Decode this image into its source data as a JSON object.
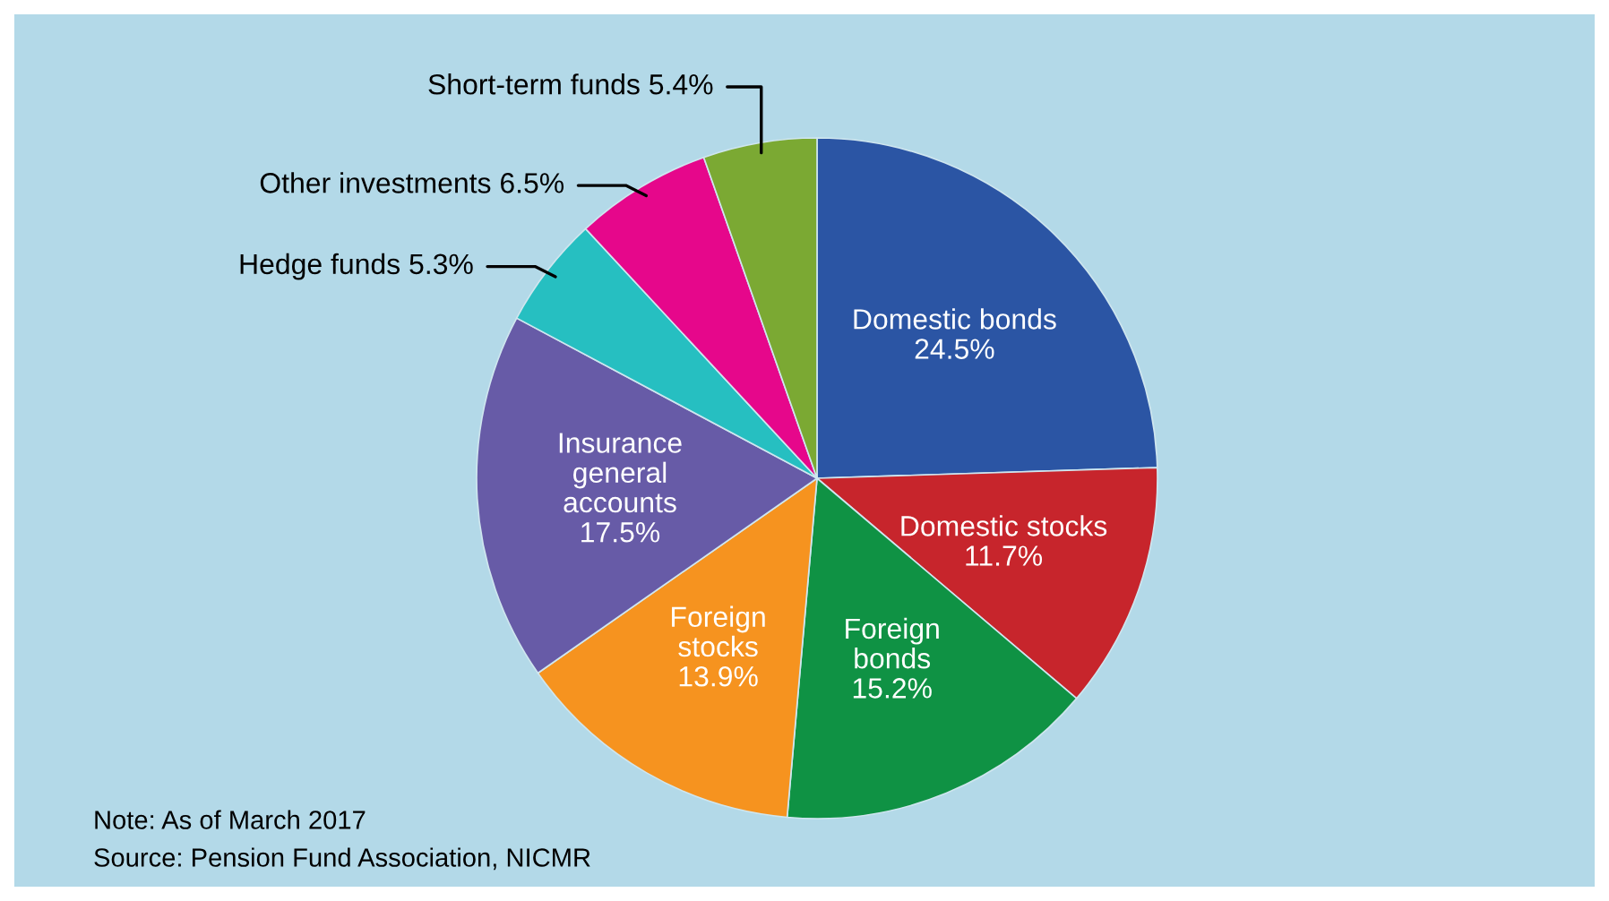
{
  "chart_data": {
    "type": "pie",
    "categories": [
      "Domestic bonds",
      "Domestic stocks",
      "Foreign\nbonds",
      "Foreign\nstocks",
      "Insurance\ngeneral\naccounts",
      "Hedge funds",
      "Other investments",
      "Short-term funds"
    ],
    "values": [
      24.5,
      11.7,
      15.2,
      13.9,
      17.5,
      5.3,
      6.5,
      5.4
    ],
    "colors": [
      "#2b55a4",
      "#c7252c",
      "#0f9244",
      "#f6931f",
      "#675ba7",
      "#26bfc1",
      "#e6078b",
      "#7ba933"
    ],
    "value_labels": [
      "24.5%",
      "11.7%",
      "15.2%",
      "13.9%",
      "17.5%",
      "5.3%",
      "6.5%",
      "5.4%"
    ],
    "annotations": [
      "Note: As of March 2017",
      "Source: Pension Fund Association, NICMR"
    ]
  }
}
